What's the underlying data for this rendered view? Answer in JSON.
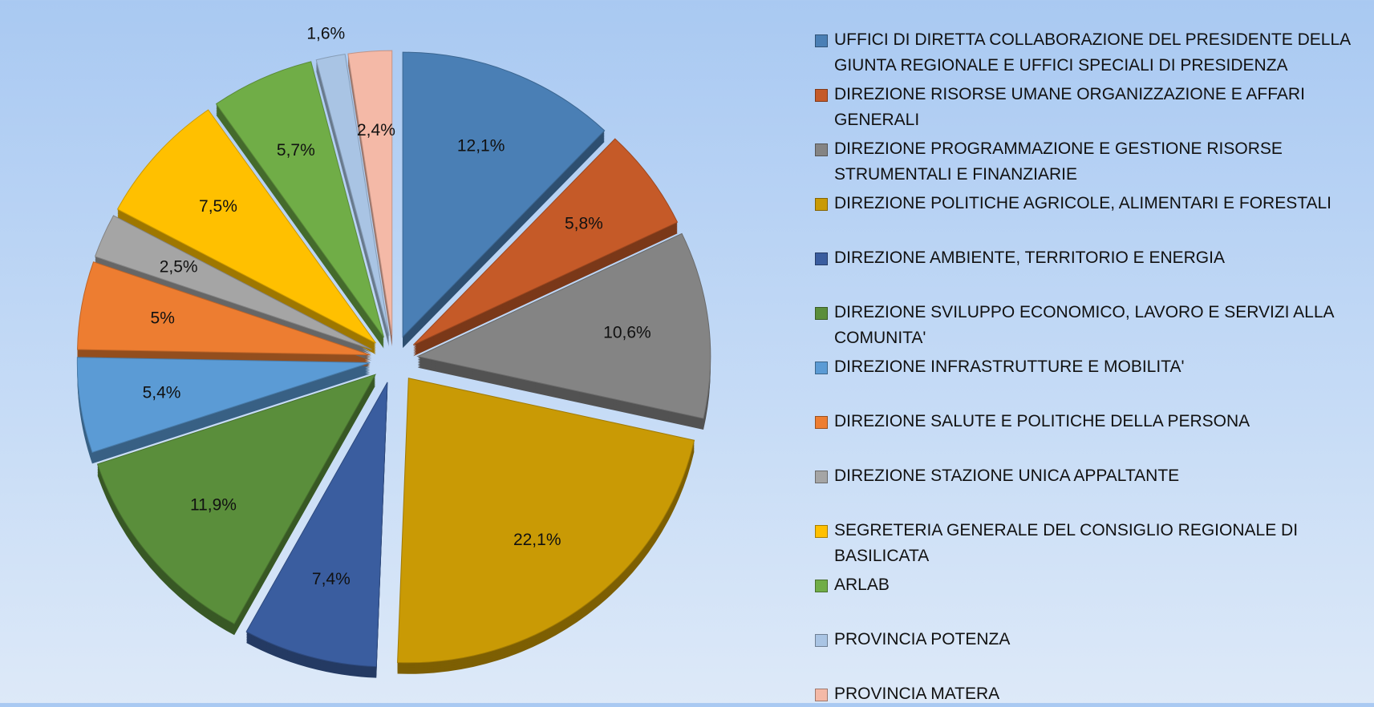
{
  "chart_data": {
    "type": "pie",
    "categories": [
      "UFFICI DI DIRETTA COLLABORAZIONE DEL PRESIDENTE DELLA GIUNTA REGIONALE E UFFICI SPECIALI DI PRESIDENZA",
      "DIREZIONE RISORSE UMANE ORGANIZZAZIONE E AFFARI GENERALI",
      "DIREZIONE PROGRAMMAZIONE E GESTIONE RISORSE STRUMENTALI E FINANZIARIE",
      "DIREZIONE POLITICHE AGRICOLE, ALIMENTARI E FORESTALI",
      "DIREZIONE AMBIENTE, TERRITORIO E ENERGIA",
      "DIREZIONE SVILUPPO ECONOMICO, LAVORO E SERVIZI ALLA COMUNITA'",
      "DIREZIONE INFRASTRUTTURE E MOBILITA'",
      "DIREZIONE SALUTE E POLITICHE DELLA PERSONA",
      "DIREZIONE STAZIONE UNICA APPALTANTE",
      "SEGRETERIA GENERALE DEL CONSIGLIO REGIONALE DI BASILICATA",
      "ARLAB",
      "PROVINCIA POTENZA",
      "PROVINCIA MATERA"
    ],
    "values": [
      12.1,
      5.8,
      10.6,
      22.1,
      7.4,
      11.9,
      5.4,
      5,
      2.5,
      7.5,
      5.7,
      1.6,
      2.4
    ],
    "value_labels": [
      "12,1%",
      "5,8%",
      "10,6%",
      "22,1%",
      "7,4%",
      "11,9%",
      "5,4%",
      "5%",
      "2,5%",
      "7,5%",
      "5,7%",
      "1,6%",
      "2,4%"
    ],
    "colors": [
      "#4a7fb5",
      "#c55a28",
      "#848484",
      "#c99a05",
      "#3a5d9f",
      "#5a8e3b",
      "#5b9bd5",
      "#ed7d31",
      "#a5a5a5",
      "#ffc000",
      "#70ad47",
      "#a9c4e4",
      "#f4b9a7"
    ],
    "legend": "right"
  }
}
